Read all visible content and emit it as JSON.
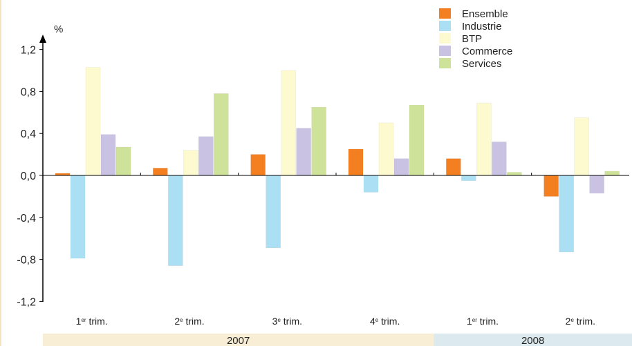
{
  "chart_data": {
    "type": "bar",
    "ylabel": "%",
    "ylim": [
      -1.2,
      1.2
    ],
    "yticks": [
      "1,2",
      "0,8",
      "0,4",
      "0,0",
      "-0,4",
      "-0,8",
      "-1,2"
    ],
    "ytick_values": [
      1.2,
      0.8,
      0.4,
      0.0,
      -0.4,
      -0.8,
      -1.2
    ],
    "categories": [
      {
        "main": "1",
        "sup": "er",
        "rest": " trim."
      },
      {
        "main": "2",
        "sup": "e",
        "rest": " trim."
      },
      {
        "main": "3",
        "sup": "e",
        "rest": " trim."
      },
      {
        "main": "4",
        "sup": "e",
        "rest": " trim."
      },
      {
        "main": "1",
        "sup": "er",
        "rest": " trim."
      },
      {
        "main": "2",
        "sup": "e",
        "rest": " trim."
      }
    ],
    "years": [
      {
        "label": "2007",
        "span": 4,
        "color": "#f8eed6"
      },
      {
        "label": "2008",
        "span": 2,
        "color": "#dce9ee"
      }
    ],
    "series": [
      {
        "name": "Ensemble",
        "color": "#f47f20",
        "values": [
          0.02,
          0.07,
          0.2,
          0.25,
          0.16,
          -0.2
        ]
      },
      {
        "name": "Industrie",
        "color": "#abe0f4",
        "values": [
          -0.79,
          -0.86,
          -0.69,
          -0.16,
          -0.05,
          -0.73
        ]
      },
      {
        "name": "BTP",
        "color": "#fdfad0",
        "values": [
          1.03,
          0.24,
          1.0,
          0.5,
          0.69,
          0.55
        ]
      },
      {
        "name": "Commerce",
        "color": "#c9c2e3",
        "values": [
          0.39,
          0.37,
          0.45,
          0.16,
          0.32,
          -0.17
        ]
      },
      {
        "name": "Services",
        "color": "#cfe29a",
        "values": [
          0.27,
          0.78,
          0.65,
          0.67,
          0.03,
          0.04
        ]
      }
    ],
    "legend_position": "top-right",
    "grid": false
  }
}
